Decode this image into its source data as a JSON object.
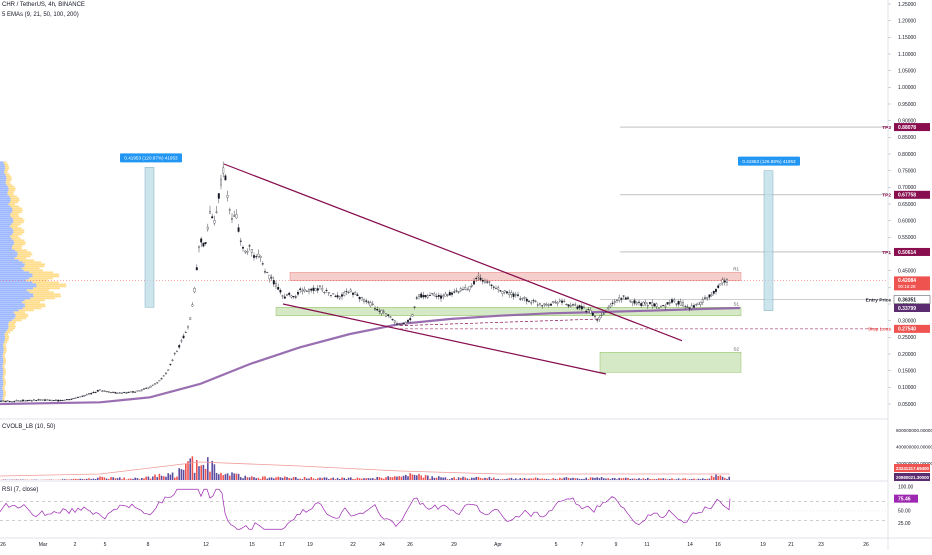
{
  "header": {
    "symbol": "CHR / TetherUS, 4h, BINANCE",
    "ema_label": "5 EMAs (9, 21, 50, 100, 200)",
    "cvolb_label": "CVOLB_LB (10, 50)",
    "rsi_label": "RSI (7, close)"
  },
  "colors": {
    "up": "#26a69a",
    "down": "#ef5350",
    "wedge": "#880e4f",
    "ema200": "#8e5fa8",
    "resistance_zone": "#f4c7c3",
    "support_zone": "#cfe6bd",
    "measure_box": "#b7dbe6",
    "measure_label_bg": "#2196f3",
    "volume_up": "#5b4ea0",
    "volume_down": "#ef5350",
    "rsi_line": "#9c27b0"
  },
  "chart_data": [
    {
      "type": "candlestick",
      "pane": "price",
      "title": "CHR / TetherUS, 4h, BINANCE",
      "price_axis_ticks": [
        "1.25000",
        "1.20000",
        "1.15000",
        "1.10000",
        "1.05000",
        "1.00000",
        "0.95000",
        "0.90000",
        "0.85000",
        "0.80000",
        "0.75000",
        "0.70000",
        "0.65000",
        "0.60000",
        "0.55000",
        "0.50000",
        "0.45000",
        "0.40000",
        "0.35000",
        "0.30000",
        "0.25000",
        "0.20000",
        "0.15000",
        "0.10000",
        "0.05000"
      ],
      "time_axis_ticks": [
        "26",
        "Mar",
        "2",
        "5",
        "8",
        "12",
        "15",
        "17",
        "19",
        "22",
        "24",
        "26",
        "29",
        "Apr",
        "5",
        "7",
        "9",
        "11",
        "14",
        "16",
        "19",
        "21",
        "23",
        "26"
      ],
      "ylim": [
        0.02,
        1.28
      ],
      "price_labels": [
        {
          "text": "0.88078",
          "caption": "TP3",
          "color": "#880e4f"
        },
        {
          "text": "0.67758",
          "caption": "TP2",
          "color": "#880e4f"
        },
        {
          "text": "0.50614",
          "caption": "TP1",
          "color": "#880e4f"
        },
        {
          "text": "0.42084",
          "caption": "",
          "color": "#ef5350",
          "sub": "00:16:28"
        },
        {
          "text": "0.36351",
          "caption": "Entry Price",
          "color": "#131722"
        },
        {
          "text": "0.33799",
          "caption": "",
          "color": "#5b2c6f"
        },
        {
          "text": "0.27540",
          "caption": "Stop Loss",
          "color": "#ef5350"
        }
      ],
      "levels": [
        {
          "value": 0.88078,
          "label": "TP3"
        },
        {
          "value": 0.67758,
          "label": "TP2"
        },
        {
          "value": 0.50614,
          "label": "TP1"
        },
        {
          "value": 0.3635,
          "label": "Entry Price"
        },
        {
          "value": 0.2754,
          "label": "Stop Loss"
        }
      ],
      "zones": [
        {
          "name": "R1",
          "top": 0.445,
          "bottom": 0.42
        },
        {
          "name": "S1",
          "top": 0.34,
          "bottom": 0.315
        },
        {
          "name": "S2",
          "top": 0.205,
          "bottom": 0.145
        }
      ],
      "measurements": [
        {
          "label": "0.41953 (120.87%) 41953",
          "from": 0.34,
          "to": 0.76
        },
        {
          "label": "0.41953 (126.88%) 41953",
          "from": 0.33,
          "to": 0.75
        }
      ],
      "series": [
        {
          "kind": "price_path",
          "points": [
            [
              0,
              0.058
            ],
            [
              20,
              0.06
            ],
            [
              40,
              0.062
            ],
            [
              60,
              0.06
            ],
            [
              70,
              0.064
            ],
            [
              80,
              0.072
            ],
            [
              90,
              0.08
            ],
            [
              100,
              0.092
            ],
            [
              110,
              0.085
            ],
            [
              120,
              0.082
            ],
            [
              130,
              0.085
            ],
            [
              140,
              0.09
            ],
            [
              150,
              0.1
            ],
            [
              160,
              0.12
            ],
            [
              168,
              0.15
            ],
            [
              175,
              0.2
            ],
            [
              182,
              0.24
            ],
            [
              190,
              0.3
            ],
            [
              195,
              0.4
            ],
            [
              200,
              0.55
            ],
            [
              205,
              0.52
            ],
            [
              210,
              0.62
            ],
            [
              215,
              0.6
            ],
            [
              220,
              0.7
            ],
            [
              224,
              0.76
            ],
            [
              228,
              0.66
            ],
            [
              232,
              0.6
            ],
            [
              236,
              0.62
            ],
            [
              240,
              0.55
            ],
            [
              245,
              0.5
            ],
            [
              250,
              0.52
            ],
            [
              255,
              0.48
            ],
            [
              260,
              0.5
            ],
            [
              265,
              0.45
            ],
            [
              270,
              0.43
            ],
            [
              275,
              0.41
            ],
            [
              280,
              0.39
            ],
            [
              285,
              0.37
            ],
            [
              290,
              0.38
            ],
            [
              295,
              0.37
            ],
            [
              300,
              0.39
            ],
            [
              310,
              0.39
            ],
            [
              320,
              0.4
            ],
            [
              330,
              0.38
            ],
            [
              340,
              0.37
            ],
            [
              350,
              0.39
            ],
            [
              360,
              0.37
            ],
            [
              370,
              0.35
            ],
            [
              380,
              0.33
            ],
            [
              390,
              0.31
            ],
            [
              398,
              0.285
            ],
            [
              405,
              0.29
            ],
            [
              412,
              0.31
            ],
            [
              418,
              0.38
            ],
            [
              425,
              0.37
            ],
            [
              432,
              0.38
            ],
            [
              440,
              0.37
            ],
            [
              450,
              0.38
            ],
            [
              460,
              0.39
            ],
            [
              470,
              0.4
            ],
            [
              478,
              0.43
            ],
            [
              484,
              0.42
            ],
            [
              490,
              0.41
            ],
            [
              500,
              0.39
            ],
            [
              510,
              0.38
            ],
            [
              520,
              0.37
            ],
            [
              530,
              0.36
            ],
            [
              540,
              0.35
            ],
            [
              550,
              0.35
            ],
            [
              560,
              0.36
            ],
            [
              570,
              0.345
            ],
            [
              580,
              0.34
            ],
            [
              590,
              0.33
            ],
            [
              597,
              0.3
            ],
            [
              604,
              0.32
            ],
            [
              612,
              0.35
            ],
            [
              622,
              0.37
            ],
            [
              632,
              0.36
            ],
            [
              642,
              0.35
            ],
            [
              652,
              0.35
            ],
            [
              662,
              0.34
            ],
            [
              672,
              0.36
            ],
            [
              682,
              0.35
            ],
            [
              692,
              0.34
            ],
            [
              700,
              0.35
            ],
            [
              708,
              0.37
            ],
            [
              716,
              0.39
            ],
            [
              722,
              0.42
            ],
            [
              728,
              0.42
            ]
          ]
        },
        {
          "name": "EMA 200",
          "points": [
            [
              0,
              0.05
            ],
            [
              100,
              0.055
            ],
            [
              150,
              0.07
            ],
            [
              200,
              0.11
            ],
            [
              250,
              0.17
            ],
            [
              300,
              0.22
            ],
            [
              350,
              0.26
            ],
            [
              400,
              0.29
            ],
            [
              450,
              0.305
            ],
            [
              500,
              0.315
            ],
            [
              550,
              0.322
            ],
            [
              600,
              0.326
            ],
            [
              650,
              0.33
            ],
            [
              700,
              0.335
            ],
            [
              740,
              0.338
            ]
          ]
        }
      ],
      "trendlines": [
        {
          "name": "wedge-upper",
          "from": [
            224,
            0.77
          ],
          "to": [
            682,
            0.24
          ]
        },
        {
          "name": "wedge-lower",
          "from": [
            283,
            0.35
          ],
          "to": [
            606,
            0.14
          ]
        }
      ]
    },
    {
      "type": "bar",
      "pane": "volume",
      "title": "CVOLB_LB (10, 50)",
      "y_axis_ticks": [
        "600000000.00000",
        "400000000.00000",
        "200000000.00000"
      ],
      "price_labels": [
        {
          "text": "23241317.69400",
          "color": "#ef5350"
        },
        {
          "text": "20980021.30000",
          "color": "#5b2c6f"
        }
      ],
      "ylim": [
        0,
        650000000
      ],
      "values_profile": [
        [
          0,
          5
        ],
        [
          60,
          6
        ],
        [
          90,
          20
        ],
        [
          100,
          35
        ],
        [
          130,
          20
        ],
        [
          160,
          60
        ],
        [
          175,
          90
        ],
        [
          185,
          180
        ],
        [
          195,
          260
        ],
        [
          200,
          170
        ],
        [
          205,
          300
        ],
        [
          210,
          220
        ],
        [
          215,
          140
        ],
        [
          225,
          90
        ],
        [
          250,
          40
        ],
        [
          300,
          30
        ],
        [
          350,
          25
        ],
        [
          400,
          40
        ],
        [
          410,
          70
        ],
        [
          450,
          25
        ],
        [
          480,
          40
        ],
        [
          500,
          20
        ],
        [
          550,
          25
        ],
        [
          600,
          30
        ],
        [
          640,
          20
        ],
        [
          700,
          15
        ],
        [
          720,
          60
        ],
        [
          730,
          30
        ]
      ]
    },
    {
      "type": "line",
      "pane": "rsi",
      "title": "RSI (7, close)",
      "y_axis_ticks": [
        "100.00",
        "75.00",
        "50.00",
        "25.00"
      ],
      "price_labels": [
        {
          "text": "75.46",
          "color": "#9c27b0"
        }
      ],
      "ylim": [
        0,
        110
      ],
      "bands": [
        70,
        30
      ],
      "rsi_seed": 7
    }
  ]
}
